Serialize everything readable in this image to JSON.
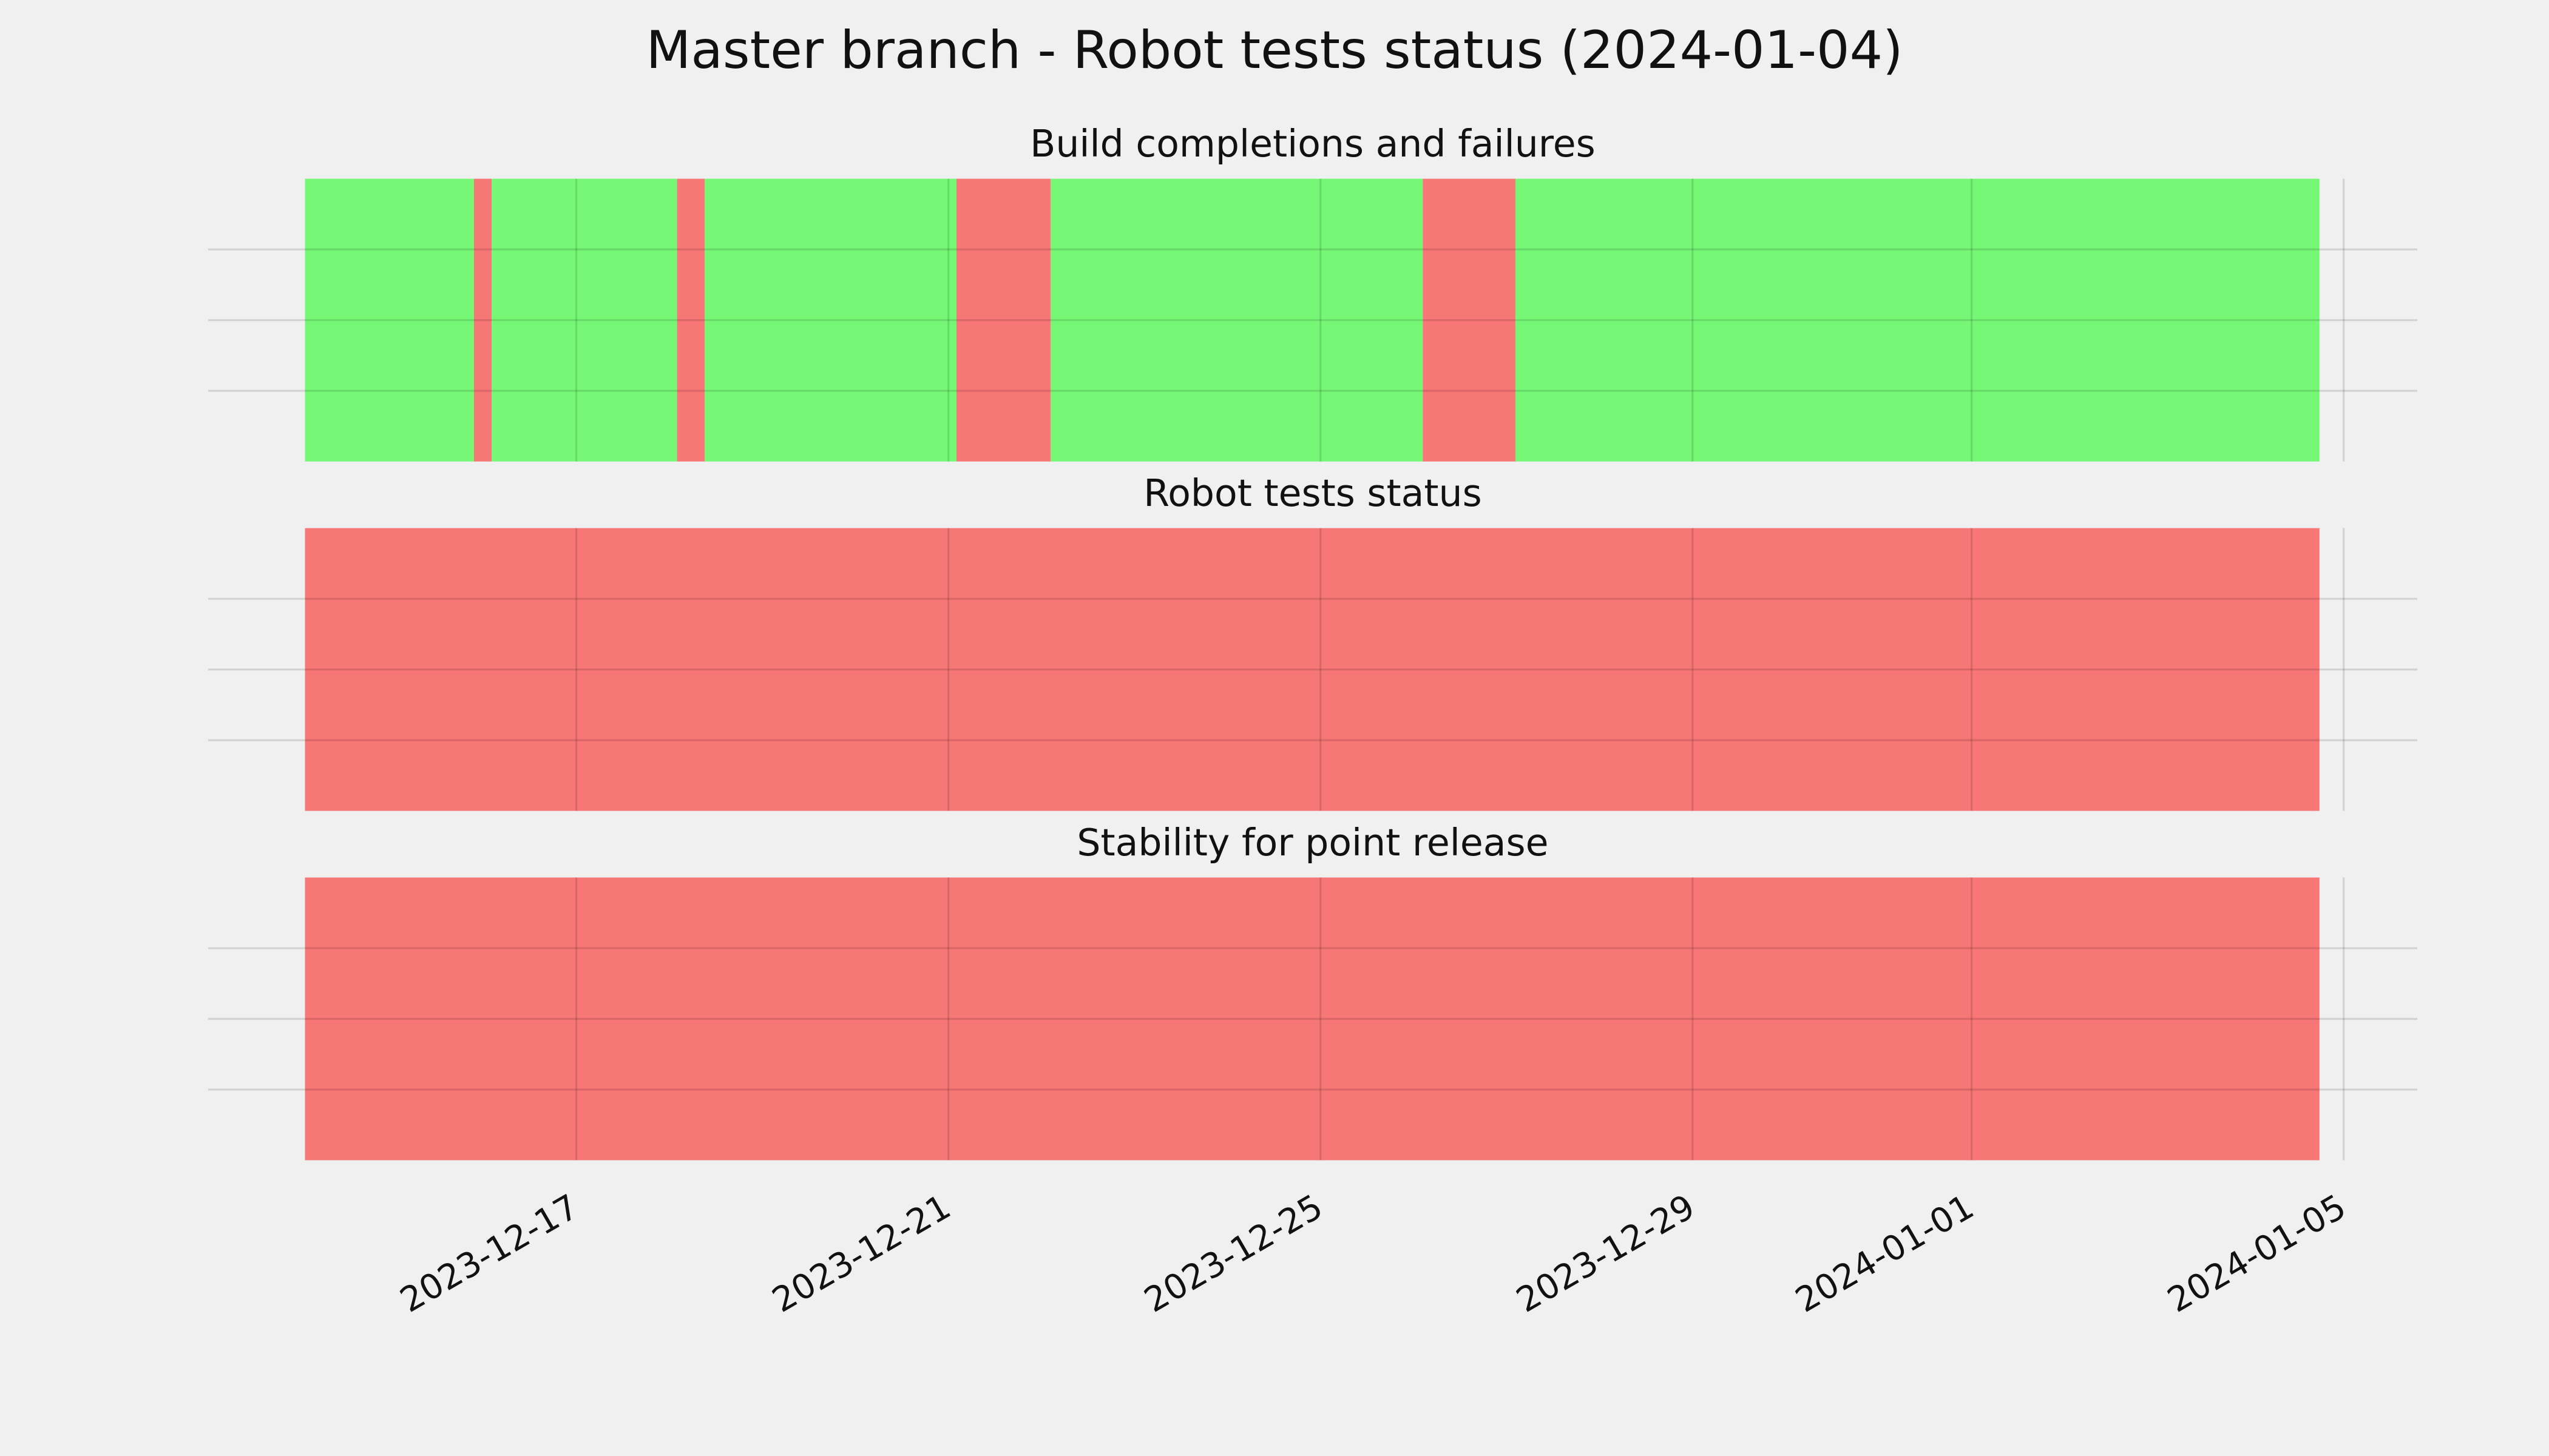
{
  "title": "Master branch - Robot tests status (2024-01-04)",
  "chart_data": [
    {
      "type": "timeline",
      "title": "Build completions and failures",
      "spans": [
        {
          "start": "2023-12-14T02:00",
          "end": "2023-12-15T21:36",
          "color": "#76f776"
        },
        {
          "start": "2023-12-15T21:36",
          "end": "2023-12-16T02:10",
          "color": "#f77676"
        },
        {
          "start": "2023-12-16T02:10",
          "end": "2023-12-18T02:00",
          "color": "#76f776"
        },
        {
          "start": "2023-12-18T02:00",
          "end": "2023-12-18T09:07",
          "color": "#f77676"
        },
        {
          "start": "2023-12-18T09:07",
          "end": "2023-12-21T02:05",
          "color": "#76f776"
        },
        {
          "start": "2023-12-21T02:05",
          "end": "2023-12-22T02:24",
          "color": "#f77676"
        },
        {
          "start": "2023-12-22T02:24",
          "end": "2023-12-26T02:24",
          "color": "#76f776"
        },
        {
          "start": "2023-12-26T02:24",
          "end": "2023-12-27T02:18",
          "color": "#f77676"
        },
        {
          "start": "2023-12-27T02:18",
          "end": "2024-01-04T17:45",
          "color": "#76f776"
        }
      ],
      "xlim": [
        "2023-12-13T01:00",
        "2024-01-05T19:00"
      ],
      "xticks": [
        "2023-12-17",
        "2023-12-21",
        "2023-12-25",
        "2023-12-29",
        "2024-01-01",
        "2024-01-05"
      ],
      "ylim": [
        0,
        1
      ],
      "yticks": [
        0.25,
        0.5,
        0.75
      ],
      "grid": true
    },
    {
      "type": "timeline",
      "title": "Robot tests status",
      "spans": [
        {
          "start": "2023-12-14T02:00",
          "end": "2024-01-04T17:45",
          "color": "#f77676"
        }
      ],
      "xlim": [
        "2023-12-13T01:00",
        "2024-01-05T19:00"
      ],
      "xticks": [
        "2023-12-17",
        "2023-12-21",
        "2023-12-25",
        "2023-12-29",
        "2024-01-01",
        "2024-01-05"
      ],
      "ylim": [
        0,
        1
      ],
      "yticks": [
        0.25,
        0.5,
        0.75
      ],
      "grid": true
    },
    {
      "type": "timeline",
      "title": "Stability for point release",
      "spans": [
        {
          "start": "2023-12-14T02:00",
          "end": "2024-01-04T17:45",
          "color": "#f77676"
        }
      ],
      "xlim": [
        "2023-12-13T01:00",
        "2024-01-05T19:00"
      ],
      "xticks": [
        "2023-12-17",
        "2023-12-21",
        "2023-12-25",
        "2023-12-29",
        "2024-01-01",
        "2024-01-05"
      ],
      "ylim": [
        0,
        1
      ],
      "yticks": [
        0.25,
        0.5,
        0.75
      ],
      "grid": true
    }
  ]
}
